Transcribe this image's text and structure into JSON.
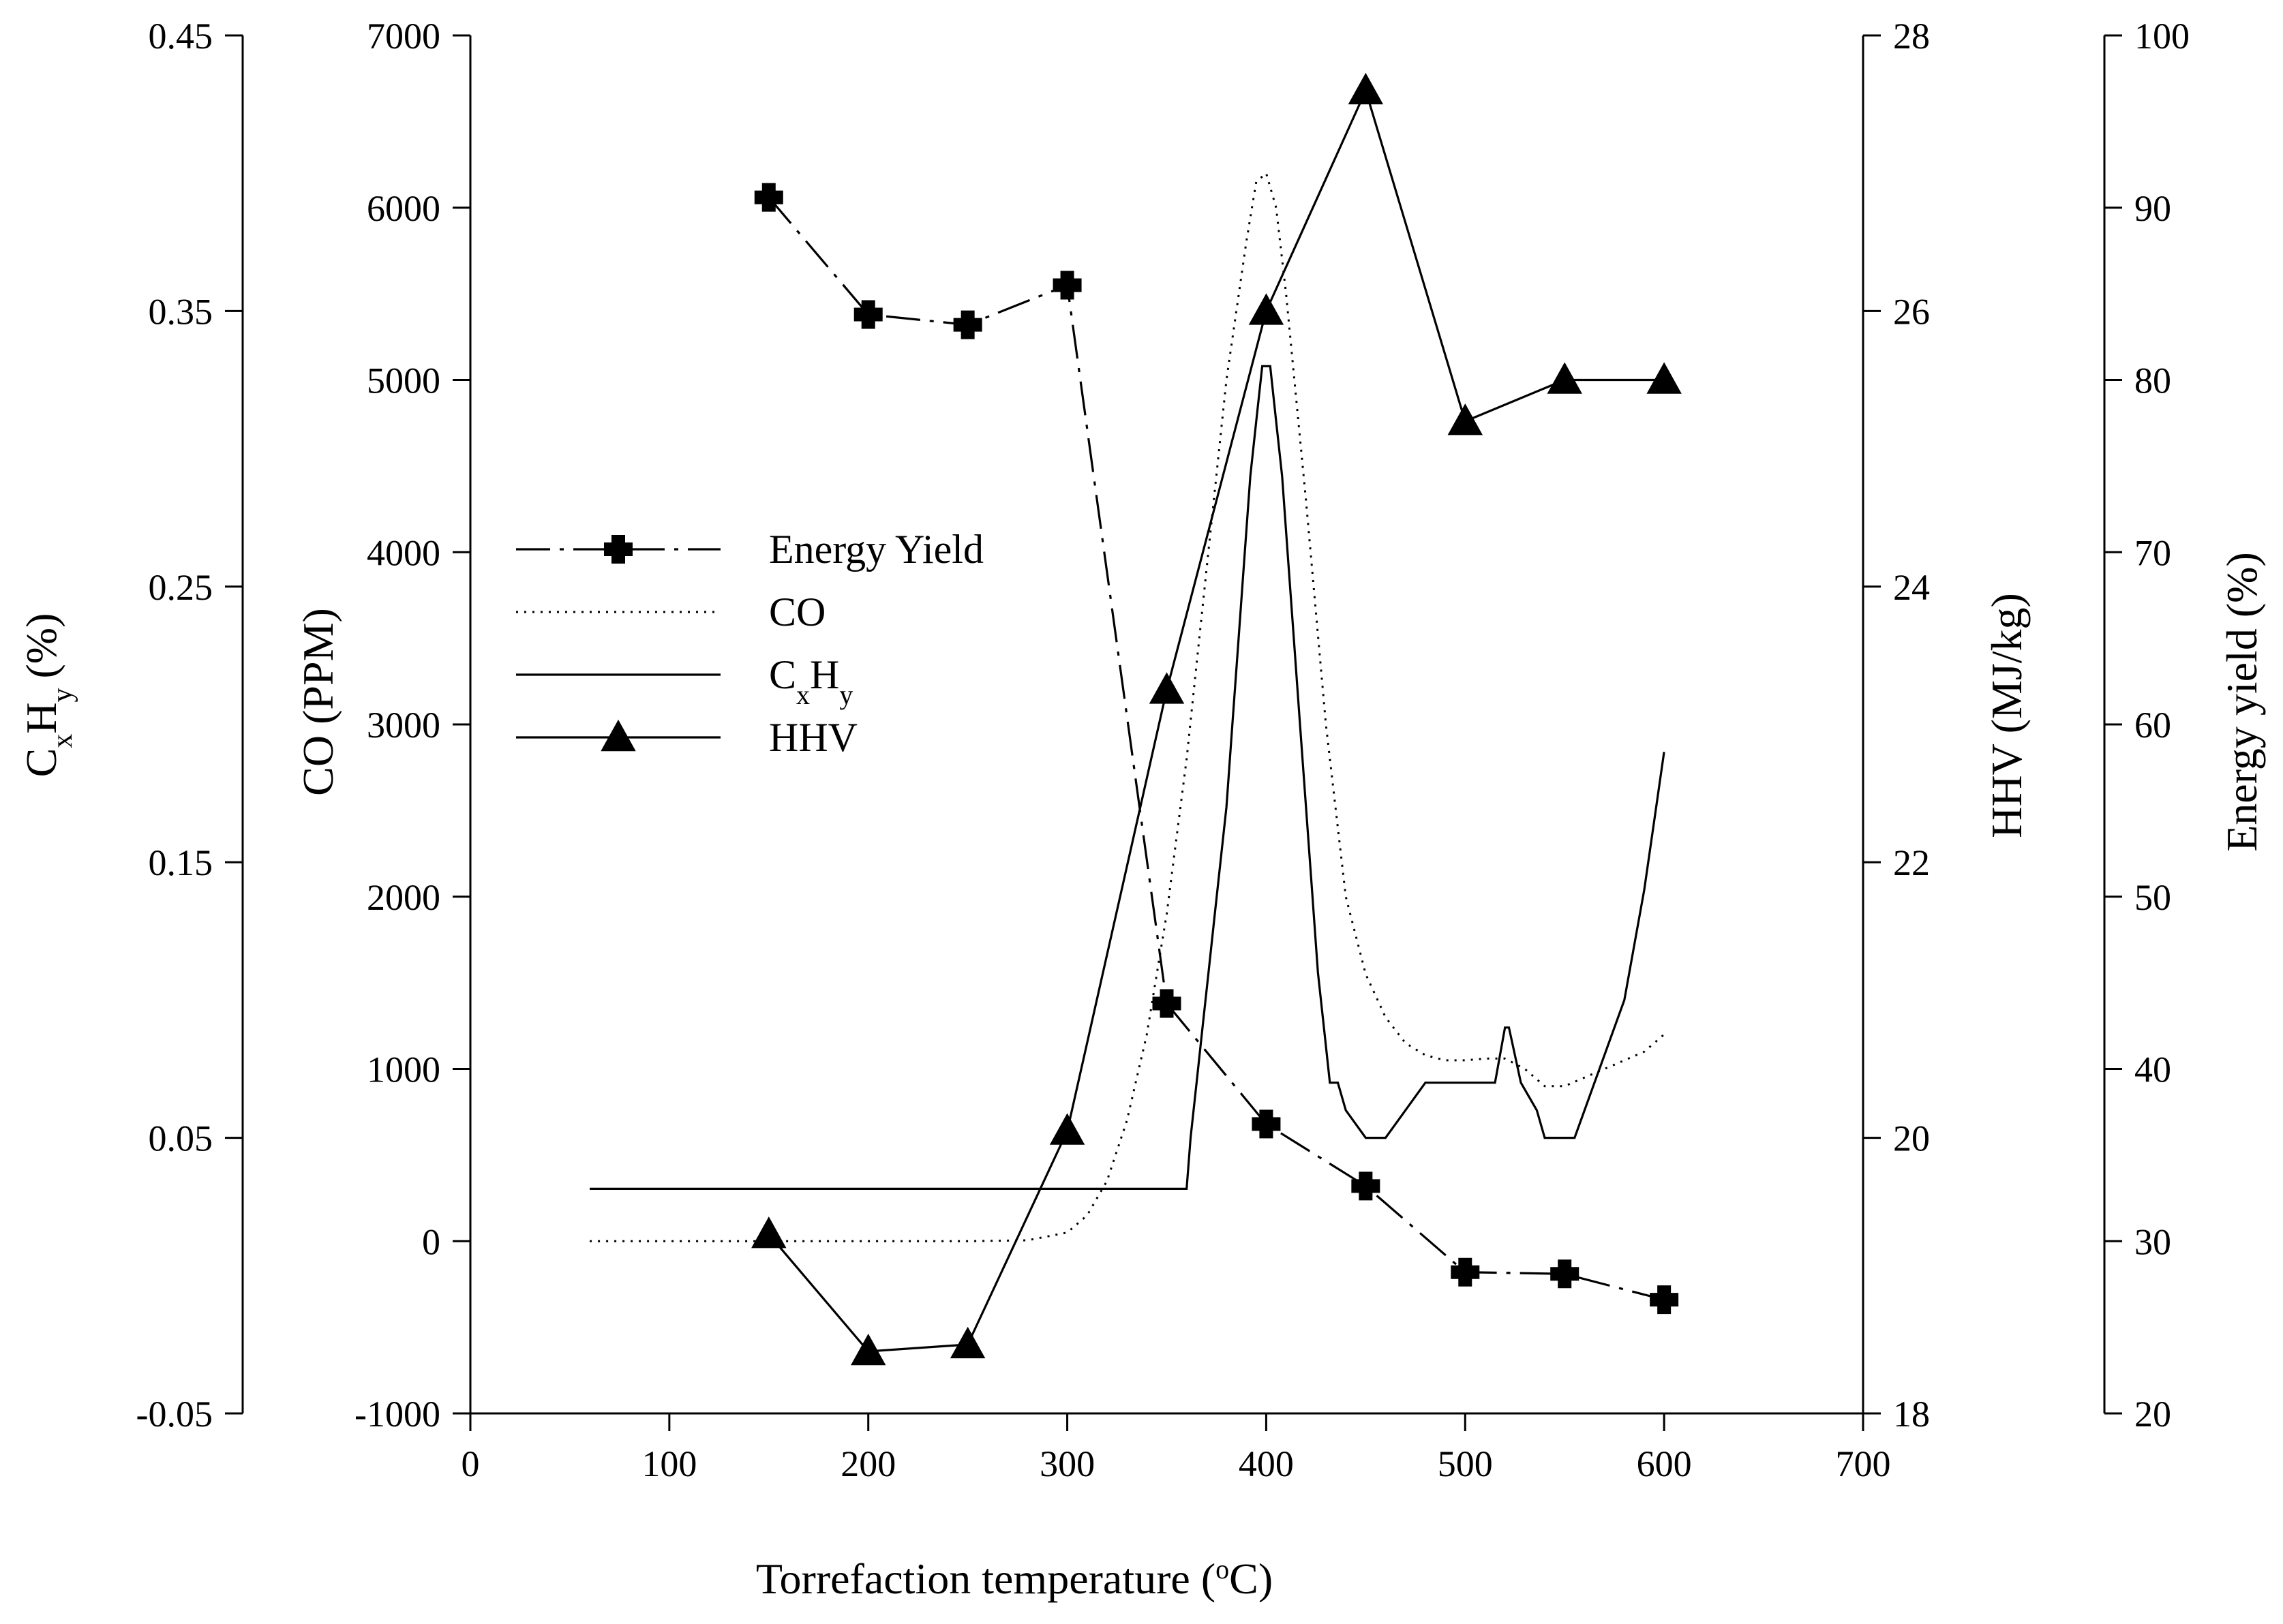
{
  "chart_data": {
    "type": "line",
    "title": "",
    "xlabel": {
      "main": "Torrefaction temperature (",
      "sup": "o",
      "rest": "C)"
    },
    "xlim": [
      0,
      700
    ],
    "xticks": [
      0,
      100,
      200,
      300,
      400,
      500,
      600,
      700
    ],
    "axes": {
      "cxhy": {
        "label": "(%)",
        "formula": {
          "c": "C",
          "x": "x",
          "h": "H",
          "y": "y"
        },
        "range": [
          -0.05,
          0.45
        ],
        "ticks": [
          -0.05,
          0.05,
          0.15,
          0.25,
          0.35,
          0.45
        ],
        "tick_labels": [
          "-0.05",
          "0.05",
          "0.15",
          "0.25",
          "0.35",
          "0.45"
        ]
      },
      "co": {
        "label": "CO (PPM)",
        "range": [
          -1000,
          7000
        ],
        "ticks": [
          -1000,
          0,
          1000,
          2000,
          3000,
          4000,
          5000,
          6000,
          7000
        ],
        "tick_labels": [
          "-1000",
          "0",
          "1000",
          "2000",
          "3000",
          "4000",
          "5000",
          "6000",
          "7000"
        ]
      },
      "hhv": {
        "label": "HHV (MJ/kg)",
        "range": [
          18,
          28
        ],
        "ticks": [
          18,
          20,
          22,
          24,
          26,
          28
        ],
        "tick_labels": [
          "18",
          "20",
          "22",
          "24",
          "26",
          "28"
        ]
      },
      "energy_yield": {
        "label": "Energy yield (%)",
        "range": [
          20,
          100
        ],
        "ticks": [
          20,
          30,
          40,
          50,
          60,
          70,
          80,
          90,
          100
        ],
        "tick_labels": [
          "20",
          "30",
          "40",
          "50",
          "60",
          "70",
          "80",
          "90",
          "100"
        ]
      }
    },
    "legend": {
      "placement": "center-left",
      "entries": [
        {
          "key": "energy_yield",
          "label": "Energy Yield"
        },
        {
          "key": "co",
          "label": "CO"
        },
        {
          "key": "cxhy",
          "label": "",
          "formula": {
            "c": "C",
            "x": "x",
            "h": "H",
            "y": "y"
          }
        },
        {
          "key": "hhv",
          "label": "HHV"
        }
      ]
    },
    "series": [
      {
        "name": "Energy Yield",
        "axis": "energy_yield",
        "style": "dash-dot",
        "marker": "plus-filled",
        "x": [
          150,
          200,
          250,
          300,
          350,
          400,
          450,
          500,
          550,
          600
        ],
        "y": [
          90.6,
          83.8,
          83.2,
          85.5,
          43.8,
          36.8,
          33.2,
          28.2,
          28.1,
          26.6
        ]
      },
      {
        "name": "CO",
        "axis": "co",
        "style": "dotted",
        "marker": "none",
        "x": [
          60,
          100,
          150,
          200,
          250,
          280,
          300,
          310,
          320,
          330,
          340,
          350,
          360,
          370,
          380,
          390,
          395,
          400,
          405,
          410,
          420,
          430,
          440,
          450,
          460,
          470,
          480,
          490,
          500,
          510,
          520,
          530,
          540,
          550,
          560,
          570,
          580,
          590,
          600
        ],
        "y": [
          0,
          0,
          0,
          0,
          0,
          5,
          50,
          150,
          350,
          700,
          1200,
          1900,
          2800,
          3900,
          5000,
          5800,
          6150,
          6200,
          6000,
          5500,
          4300,
          3000,
          2000,
          1550,
          1300,
          1150,
          1080,
          1050,
          1050,
          1060,
          1060,
          1000,
          900,
          900,
          950,
          1000,
          1050,
          1100,
          1200
        ]
      },
      {
        "name": "CxHy",
        "axis": "cxhy",
        "style": "solid",
        "marker": "none",
        "x": [
          60,
          360,
          362,
          365,
          368,
          371,
          374,
          377,
          380,
          383,
          386,
          389,
          392,
          395,
          398,
          400,
          402,
          405,
          408,
          411,
          414,
          417,
          420,
          423,
          426,
          429,
          432,
          436,
          440,
          450,
          460,
          470,
          480,
          490,
          500,
          510,
          515,
          520,
          522,
          525,
          528,
          532,
          536,
          540,
          545,
          550,
          555,
          560,
          565,
          570,
          575,
          580,
          585,
          590,
          595,
          600
        ],
        "y": [
          0.0315,
          0.0315,
          0.05,
          0.07,
          0.09,
          0.11,
          0.13,
          0.15,
          0.17,
          0.2,
          0.23,
          0.26,
          0.29,
          0.31,
          0.33,
          0.33,
          0.33,
          0.31,
          0.29,
          0.26,
          0.23,
          0.2,
          0.17,
          0.14,
          0.11,
          0.09,
          0.07,
          0.07,
          0.06,
          0.05,
          0.05,
          0.06,
          0.07,
          0.07,
          0.07,
          0.07,
          0.07,
          0.09,
          0.09,
          0.08,
          0.07,
          0.065,
          0.06,
          0.05,
          0.05,
          0.05,
          0.05,
          0.06,
          0.07,
          0.08,
          0.09,
          0.1,
          0.12,
          0.14,
          0.165,
          0.19
        ]
      },
      {
        "name": "HHV",
        "axis": "hhv",
        "style": "solid",
        "marker": "triangle",
        "x": [
          150,
          200,
          250,
          300,
          350,
          400,
          450,
          500,
          550,
          600
        ],
        "y": [
          19.3,
          18.45,
          18.5,
          20.05,
          23.25,
          26.0,
          27.6,
          25.2,
          25.5,
          25.5
        ]
      }
    ]
  }
}
